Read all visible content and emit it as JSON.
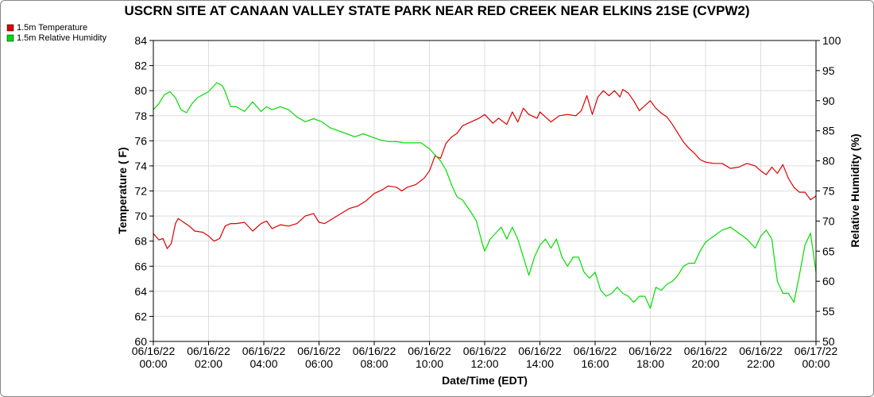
{
  "chart_data": {
    "type": "line",
    "title": "USCRN SITE AT CANAAN VALLEY STATE PARK NEAR RED CREEK NEAR ELKINS 21SE (CVPW2)",
    "xlabel": "Date/Time (EDT)",
    "ylabel_left": "Temperature ( F)",
    "ylabel_right": "Relative Humidity (%)",
    "xlim_hours": [
      0,
      24
    ],
    "ylim_left": [
      60,
      84
    ],
    "ylim_right": [
      50,
      100
    ],
    "yticks_left": [
      "60",
      "62",
      "64",
      "66",
      "68",
      "70",
      "72",
      "74",
      "76",
      "78",
      "80",
      "82",
      "84"
    ],
    "yticks_right": [
      "50",
      "55",
      "60",
      "65",
      "70",
      "75",
      "80",
      "85",
      "90",
      "95",
      "100"
    ],
    "xticks": [
      {
        "date": "06/16/22",
        "time": "00:00"
      },
      {
        "date": "06/16/22",
        "time": "02:00"
      },
      {
        "date": "06/16/22",
        "time": "04:00"
      },
      {
        "date": "06/16/22",
        "time": "06:00"
      },
      {
        "date": "06/16/22",
        "time": "08:00"
      },
      {
        "date": "06/16/22",
        "time": "10:00"
      },
      {
        "date": "06/16/22",
        "time": "12:00"
      },
      {
        "date": "06/16/22",
        "time": "14:00"
      },
      {
        "date": "06/16/22",
        "time": "16:00"
      },
      {
        "date": "06/16/22",
        "time": "18:00"
      },
      {
        "date": "06/16/22",
        "time": "20:00"
      },
      {
        "date": "06/16/22",
        "time": "22:00"
      },
      {
        "date": "06/17/22",
        "time": "00:00"
      }
    ],
    "grid": true,
    "legend_position": "top-left",
    "series": [
      {
        "name": "1.5m Temperature",
        "axis": "left",
        "color": "#dd0000",
        "points": [
          [
            0.0,
            68.6
          ],
          [
            0.2,
            68.1
          ],
          [
            0.35,
            68.2
          ],
          [
            0.5,
            67.4
          ],
          [
            0.65,
            67.8
          ],
          [
            0.8,
            69.4
          ],
          [
            0.9,
            69.8
          ],
          [
            1.1,
            69.5
          ],
          [
            1.3,
            69.2
          ],
          [
            1.5,
            68.8
          ],
          [
            1.8,
            68.7
          ],
          [
            2.0,
            68.4
          ],
          [
            2.2,
            68.0
          ],
          [
            2.4,
            68.2
          ],
          [
            2.6,
            69.2
          ],
          [
            2.8,
            69.4
          ],
          [
            3.0,
            69.4
          ],
          [
            3.3,
            69.5
          ],
          [
            3.6,
            68.8
          ],
          [
            3.9,
            69.4
          ],
          [
            4.1,
            69.6
          ],
          [
            4.3,
            69.0
          ],
          [
            4.6,
            69.3
          ],
          [
            4.9,
            69.2
          ],
          [
            5.2,
            69.4
          ],
          [
            5.5,
            70.0
          ],
          [
            5.8,
            70.2
          ],
          [
            6.0,
            69.5
          ],
          [
            6.2,
            69.4
          ],
          [
            6.5,
            69.8
          ],
          [
            6.8,
            70.2
          ],
          [
            7.1,
            70.6
          ],
          [
            7.4,
            70.8
          ],
          [
            7.7,
            71.2
          ],
          [
            8.0,
            71.8
          ],
          [
            8.3,
            72.1
          ],
          [
            8.5,
            72.4
          ],
          [
            8.8,
            72.3
          ],
          [
            9.0,
            72.0
          ],
          [
            9.2,
            72.3
          ],
          [
            9.5,
            72.5
          ],
          [
            9.8,
            73.0
          ],
          [
            10.0,
            73.6
          ],
          [
            10.1,
            74.2
          ],
          [
            10.2,
            74.8
          ],
          [
            10.4,
            74.6
          ],
          [
            10.6,
            75.8
          ],
          [
            10.8,
            76.3
          ],
          [
            11.0,
            76.6
          ],
          [
            11.2,
            77.2
          ],
          [
            11.5,
            77.5
          ],
          [
            11.8,
            77.8
          ],
          [
            12.0,
            78.1
          ],
          [
            12.3,
            77.4
          ],
          [
            12.5,
            77.8
          ],
          [
            12.8,
            77.3
          ],
          [
            13.0,
            78.3
          ],
          [
            13.2,
            77.5
          ],
          [
            13.4,
            78.6
          ],
          [
            13.6,
            78.1
          ],
          [
            13.9,
            77.8
          ],
          [
            14.0,
            78.3
          ],
          [
            14.2,
            77.9
          ],
          [
            14.4,
            77.5
          ],
          [
            14.7,
            78.0
          ],
          [
            15.0,
            78.1
          ],
          [
            15.3,
            78.0
          ],
          [
            15.5,
            78.4
          ],
          [
            15.7,
            79.6
          ],
          [
            15.9,
            78.1
          ],
          [
            16.1,
            79.5
          ],
          [
            16.3,
            80.0
          ],
          [
            16.5,
            79.6
          ],
          [
            16.7,
            80.0
          ],
          [
            16.9,
            79.5
          ],
          [
            17.0,
            80.1
          ],
          [
            17.2,
            79.8
          ],
          [
            17.4,
            79.2
          ],
          [
            17.6,
            78.4
          ],
          [
            17.8,
            78.8
          ],
          [
            18.0,
            79.2
          ],
          [
            18.2,
            78.6
          ],
          [
            18.4,
            78.2
          ],
          [
            18.6,
            77.9
          ],
          [
            18.8,
            77.3
          ],
          [
            19.0,
            76.6
          ],
          [
            19.2,
            75.9
          ],
          [
            19.4,
            75.4
          ],
          [
            19.6,
            75.0
          ],
          [
            19.8,
            74.5
          ],
          [
            20.0,
            74.3
          ],
          [
            20.3,
            74.2
          ],
          [
            20.6,
            74.2
          ],
          [
            20.9,
            73.8
          ],
          [
            21.2,
            73.9
          ],
          [
            21.5,
            74.2
          ],
          [
            21.8,
            74.0
          ],
          [
            22.0,
            73.6
          ],
          [
            22.2,
            73.3
          ],
          [
            22.4,
            73.9
          ],
          [
            22.6,
            73.4
          ],
          [
            22.8,
            74.1
          ],
          [
            23.0,
            73.0
          ],
          [
            23.2,
            72.3
          ],
          [
            23.4,
            71.9
          ],
          [
            23.6,
            71.9
          ],
          [
            23.8,
            71.3
          ],
          [
            24.0,
            71.6
          ]
        ]
      },
      {
        "name": "1.5m Relative Humidity",
        "axis": "right",
        "color": "#00dd00",
        "points": [
          [
            0.0,
            88.5
          ],
          [
            0.2,
            89.5
          ],
          [
            0.4,
            91.0
          ],
          [
            0.6,
            91.5
          ],
          [
            0.8,
            90.5
          ],
          [
            1.0,
            88.5
          ],
          [
            1.2,
            88.0
          ],
          [
            1.4,
            89.5
          ],
          [
            1.6,
            90.5
          ],
          [
            1.8,
            91.0
          ],
          [
            2.0,
            91.5
          ],
          [
            2.1,
            92.0
          ],
          [
            2.3,
            93.0
          ],
          [
            2.5,
            92.5
          ],
          [
            2.6,
            91.5
          ],
          [
            2.8,
            89.0
          ],
          [
            3.0,
            89.0
          ],
          [
            3.3,
            88.2
          ],
          [
            3.6,
            89.8
          ],
          [
            3.9,
            88.2
          ],
          [
            4.1,
            89.0
          ],
          [
            4.3,
            88.5
          ],
          [
            4.6,
            89.0
          ],
          [
            4.9,
            88.5
          ],
          [
            5.2,
            87.3
          ],
          [
            5.5,
            86.5
          ],
          [
            5.8,
            87.0
          ],
          [
            6.1,
            86.5
          ],
          [
            6.4,
            85.5
          ],
          [
            6.7,
            85.0
          ],
          [
            7.0,
            84.5
          ],
          [
            7.3,
            84.0
          ],
          [
            7.6,
            84.5
          ],
          [
            7.9,
            84.0
          ],
          [
            8.2,
            83.5
          ],
          [
            8.5,
            83.2
          ],
          [
            8.8,
            83.2
          ],
          [
            9.1,
            83.0
          ],
          [
            9.4,
            83.0
          ],
          [
            9.7,
            83.0
          ],
          [
            10.0,
            82.0
          ],
          [
            10.2,
            81.0
          ],
          [
            10.4,
            80.0
          ],
          [
            10.6,
            78.5
          ],
          [
            10.8,
            76.0
          ],
          [
            11.0,
            74.0
          ],
          [
            11.2,
            73.5
          ],
          [
            11.5,
            71.5
          ],
          [
            11.7,
            70.0
          ],
          [
            11.9,
            66.5
          ],
          [
            12.0,
            65.0
          ],
          [
            12.2,
            67.0
          ],
          [
            12.4,
            68.0
          ],
          [
            12.6,
            69.0
          ],
          [
            12.8,
            67.0
          ],
          [
            13.0,
            69.0
          ],
          [
            13.2,
            67.0
          ],
          [
            13.4,
            64.0
          ],
          [
            13.6,
            61.0
          ],
          [
            13.8,
            64.0
          ],
          [
            14.0,
            66.0
          ],
          [
            14.2,
            67.0
          ],
          [
            14.4,
            65.5
          ],
          [
            14.6,
            67.0
          ],
          [
            14.8,
            64.0
          ],
          [
            15.0,
            62.5
          ],
          [
            15.2,
            64.0
          ],
          [
            15.4,
            64.0
          ],
          [
            15.6,
            61.5
          ],
          [
            15.8,
            60.5
          ],
          [
            16.0,
            61.5
          ],
          [
            16.2,
            58.5
          ],
          [
            16.4,
            57.5
          ],
          [
            16.6,
            58.0
          ],
          [
            16.8,
            59.0
          ],
          [
            17.0,
            58.0
          ],
          [
            17.2,
            57.5
          ],
          [
            17.4,
            56.5
          ],
          [
            17.6,
            57.5
          ],
          [
            17.8,
            57.5
          ],
          [
            18.0,
            55.5
          ],
          [
            18.2,
            59.0
          ],
          [
            18.4,
            58.5
          ],
          [
            18.6,
            59.5
          ],
          [
            18.8,
            60.0
          ],
          [
            19.0,
            61.0
          ],
          [
            19.2,
            62.5
          ],
          [
            19.4,
            63.0
          ],
          [
            19.6,
            63.0
          ],
          [
            19.8,
            65.0
          ],
          [
            20.0,
            66.5
          ],
          [
            20.3,
            67.5
          ],
          [
            20.6,
            68.5
          ],
          [
            20.9,
            69.0
          ],
          [
            21.2,
            68.0
          ],
          [
            21.5,
            67.0
          ],
          [
            21.8,
            65.5
          ],
          [
            22.0,
            67.5
          ],
          [
            22.2,
            68.5
          ],
          [
            22.4,
            67.0
          ],
          [
            22.6,
            60.0
          ],
          [
            22.8,
            58.0
          ],
          [
            23.0,
            58.0
          ],
          [
            23.2,
            56.5
          ],
          [
            23.4,
            61.0
          ],
          [
            23.6,
            66.0
          ],
          [
            23.8,
            68.0
          ],
          [
            24.0,
            61.5
          ]
        ]
      }
    ]
  }
}
